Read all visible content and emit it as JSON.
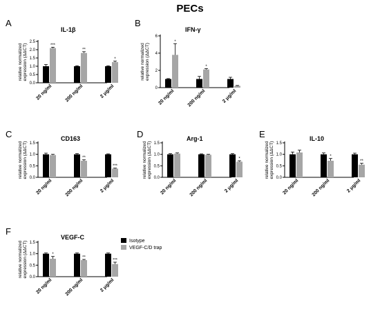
{
  "figure_title": "PECs",
  "legend": [
    {
      "label": "Isotype",
      "color": "#000000"
    },
    {
      "label": "VEGF-C/D trap",
      "color": "#a6a6a6"
    }
  ],
  "chart_data": [
    {
      "letter": "A",
      "type": "bar",
      "title": "IL-1β",
      "ylabel": "relative normalized expression (ΔΔCT)",
      "ylim": [
        0,
        2.5
      ],
      "yticks": [
        "0.0",
        "0.5",
        "1.0",
        "1.5",
        "2.0",
        "2.5"
      ],
      "categories": [
        "20 ng/ml",
        "200 ng/ml",
        "2 μg/ml"
      ],
      "series": [
        {
          "name": "Isotype",
          "values": [
            1.0,
            1.0,
            1.0
          ],
          "errors": [
            0.1,
            0.03,
            0.03
          ]
        },
        {
          "name": "VEGF-C/D trap",
          "values": [
            2.1,
            1.8,
            1.25
          ],
          "errors": [
            0.05,
            0.08,
            0.06
          ]
        }
      ],
      "significance": [
        "***",
        "**",
        "*"
      ]
    },
    {
      "letter": "B",
      "type": "bar",
      "title": "IFN-γ",
      "ylabel": "relative normalized expression (ΔΔCT)",
      "ylim": [
        0,
        6
      ],
      "yticks": [
        "0",
        "2",
        "4",
        "6"
      ],
      "categories": [
        "20 ng/ml",
        "200 ng/ml",
        "2 μg/ml"
      ],
      "series": [
        {
          "name": "Isotype",
          "values": [
            1.0,
            1.0,
            1.0
          ],
          "errors": [
            0.05,
            0.3,
            0.2
          ]
        },
        {
          "name": "VEGF-C/D trap",
          "values": [
            3.8,
            2.1,
            0.2
          ],
          "errors": [
            1.3,
            0.1,
            0.05
          ]
        }
      ],
      "significance": [
        "*",
        "*",
        ""
      ]
    },
    {
      "letter": "C",
      "type": "bar",
      "title": "CD163",
      "ylabel": "relative normalized expression (ΔΔCT)",
      "ylim": [
        0,
        1.5
      ],
      "yticks": [
        "0.0",
        "0.5",
        "1.0",
        "1.5"
      ],
      "categories": [
        "20 ng/ml",
        "200 ng/ml",
        "2 μg/ml"
      ],
      "series": [
        {
          "name": "Isotype",
          "values": [
            1.0,
            1.0,
            1.0
          ],
          "errors": [
            0.05,
            0.03,
            0.02
          ]
        },
        {
          "name": "VEGF-C/D trap",
          "values": [
            0.97,
            0.72,
            0.38
          ],
          "errors": [
            0.03,
            0.04,
            0.02
          ]
        }
      ],
      "significance": [
        "",
        "**",
        "***"
      ]
    },
    {
      "letter": "D",
      "type": "bar",
      "title": "Arg-1",
      "ylabel": "relative normalized expression (ΔΔCT)",
      "ylim": [
        0,
        1.5
      ],
      "yticks": [
        "0.0",
        "0.5",
        "1.0",
        "1.5"
      ],
      "categories": [
        "20 ng/ml",
        "200 ng/ml",
        "2 μg/ml"
      ],
      "series": [
        {
          "name": "Isotype",
          "values": [
            1.0,
            1.0,
            1.0
          ],
          "errors": [
            0.03,
            0.02,
            0.03
          ]
        },
        {
          "name": "VEGF-C/D trap",
          "values": [
            1.03,
            0.98,
            0.68
          ],
          "errors": [
            0.03,
            0.02,
            0.04
          ]
        }
      ],
      "significance": [
        "",
        "",
        "*"
      ]
    },
    {
      "letter": "E",
      "type": "bar",
      "title": "IL-10",
      "ylabel": "relative normalized expression (ΔΔCT)",
      "ylim": [
        0,
        1.5
      ],
      "yticks": [
        "0.0",
        "0.5",
        "1.0",
        "1.5"
      ],
      "categories": [
        "20 ng/ml",
        "200 ng/ml",
        "2 μg/ml"
      ],
      "series": [
        {
          "name": "Isotype",
          "values": [
            1.0,
            1.0,
            1.0
          ],
          "errors": [
            0.1,
            0.06,
            0.05
          ]
        },
        {
          "name": "VEGF-C/D trap",
          "values": [
            1.08,
            0.72,
            0.55
          ],
          "errors": [
            0.1,
            0.1,
            0.06
          ]
        }
      ],
      "significance": [
        "",
        "*",
        "**"
      ]
    },
    {
      "letter": "F",
      "type": "bar",
      "title": "VEGF-C",
      "ylabel": "relative normalized expression (ΔΔCT)",
      "ylim": [
        0,
        1.5
      ],
      "yticks": [
        "0.0",
        "0.5",
        "1.0",
        "1.5"
      ],
      "categories": [
        "20 ng/ml",
        "200 ng/ml",
        "2 μg/ml"
      ],
      "series": [
        {
          "name": "Isotype",
          "values": [
            1.0,
            1.0,
            1.0
          ],
          "errors": [
            0.03,
            0.03,
            0.03
          ]
        },
        {
          "name": "VEGF-C/D trap",
          "values": [
            0.78,
            0.72,
            0.55
          ],
          "errors": [
            0.1,
            0.03,
            0.08
          ]
        }
      ],
      "significance": [
        "*",
        "**",
        "***"
      ]
    }
  ]
}
